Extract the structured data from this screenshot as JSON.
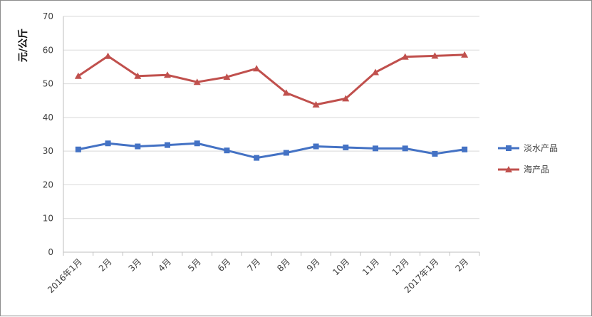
{
  "chart_data": {
    "type": "line",
    "title": "",
    "xlabel": "",
    "ylabel": "元/公斤",
    "ylim": [
      0,
      70
    ],
    "yticks": [
      0,
      10,
      20,
      30,
      40,
      50,
      60,
      70
    ],
    "grid": true,
    "legend_position": "right",
    "categories": [
      "2016年1月",
      "2月",
      "3月",
      "4月",
      "5月",
      "6月",
      "7月",
      "8月",
      "9月",
      "10月",
      "11月",
      "12月",
      "2017年1月",
      "2月"
    ],
    "series": [
      {
        "name": "淡水产品",
        "color": "#4472c4",
        "marker": "square",
        "values": [
          30.5,
          32.3,
          31.4,
          31.8,
          32.3,
          30.2,
          28.0,
          29.5,
          31.4,
          31.1,
          30.8,
          30.8,
          29.2,
          30.5
        ]
      },
      {
        "name": "海产品",
        "color": "#c0504d",
        "marker": "triangle",
        "values": [
          52.3,
          58.2,
          52.3,
          52.6,
          50.5,
          52.0,
          54.5,
          47.3,
          43.8,
          45.6,
          53.4,
          58.0,
          58.3,
          58.6
        ]
      }
    ]
  }
}
